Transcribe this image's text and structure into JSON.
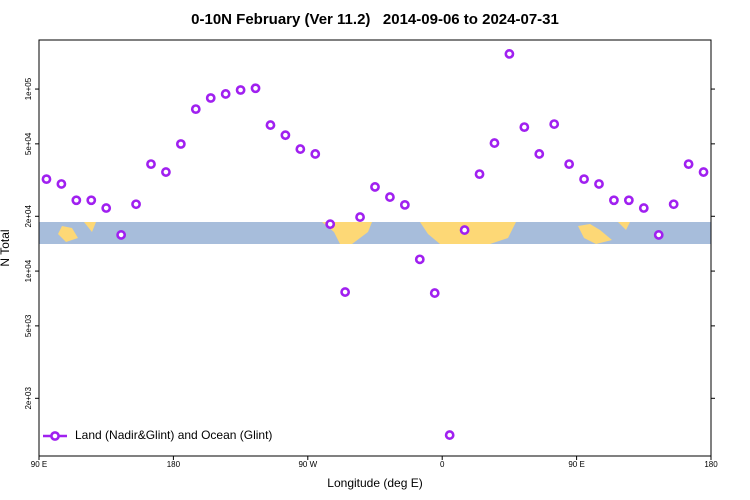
{
  "chart_data": {
    "type": "scatter",
    "title": "0-10N February (Ver 11.2)   2014-09-06 to 2024-07-31",
    "x_label": "Longitude (deg E)",
    "y_label": "N Total",
    "x": [
      95,
      105,
      115,
      125,
      135,
      145,
      155,
      165,
      175,
      185,
      195,
      205,
      215,
      225,
      235,
      245,
      255,
      265,
      275,
      285,
      295,
      305,
      315,
      325,
      335,
      345,
      355,
      365,
      375,
      385,
      395,
      405,
      415,
      425,
      435,
      445,
      455,
      465,
      475,
      485,
      495,
      505,
      515,
      525,
      535
    ],
    "series": [
      {
        "name": "Land (Nadir&Glint) and Ocean (Glint)",
        "color": "#a020f0",
        "values": [
          32000,
          30100,
          24500,
          24500,
          22200,
          15800,
          23300,
          38700,
          35000,
          49900,
          77600,
          89300,
          94000,
          98800,
          101000,
          63400,
          55800,
          46800,
          44000,
          18100,
          7670,
          19800,
          29000,
          25500,
          23100,
          11600,
          7570,
          1256,
          16800,
          34100,
          50500,
          156000,
          61800,
          44000,
          64200,
          38700,
          32000,
          30100,
          24500,
          24500,
          22200,
          15800,
          23300,
          38700,
          35000
        ]
      }
    ],
    "xlim": [
      90,
      540
    ],
    "xticks": [
      {
        "value": 90,
        "label": "90 E"
      },
      180,
      {
        "value": 270,
        "label": "90 W"
      },
      {
        "value": 360,
        "label": "0"
      },
      {
        "value": 450,
        "label": "90 E"
      },
      {
        "value": 540,
        "label": "180"
      }
    ],
    "ylim": [
      964,
      186000
    ],
    "yscale": "log",
    "yticks": [
      {
        "value": 2000,
        "label": "2e+03"
      },
      {
        "value": 5000,
        "label": "5e+03"
      },
      {
        "value": 10000,
        "label": "1e+04"
      },
      {
        "value": 20000,
        "label": "2e+04"
      },
      {
        "value": 50000,
        "label": "5e+04"
      },
      {
        "value": 100000,
        "label": "1e+05"
      }
    ],
    "legend": "lower left"
  }
}
